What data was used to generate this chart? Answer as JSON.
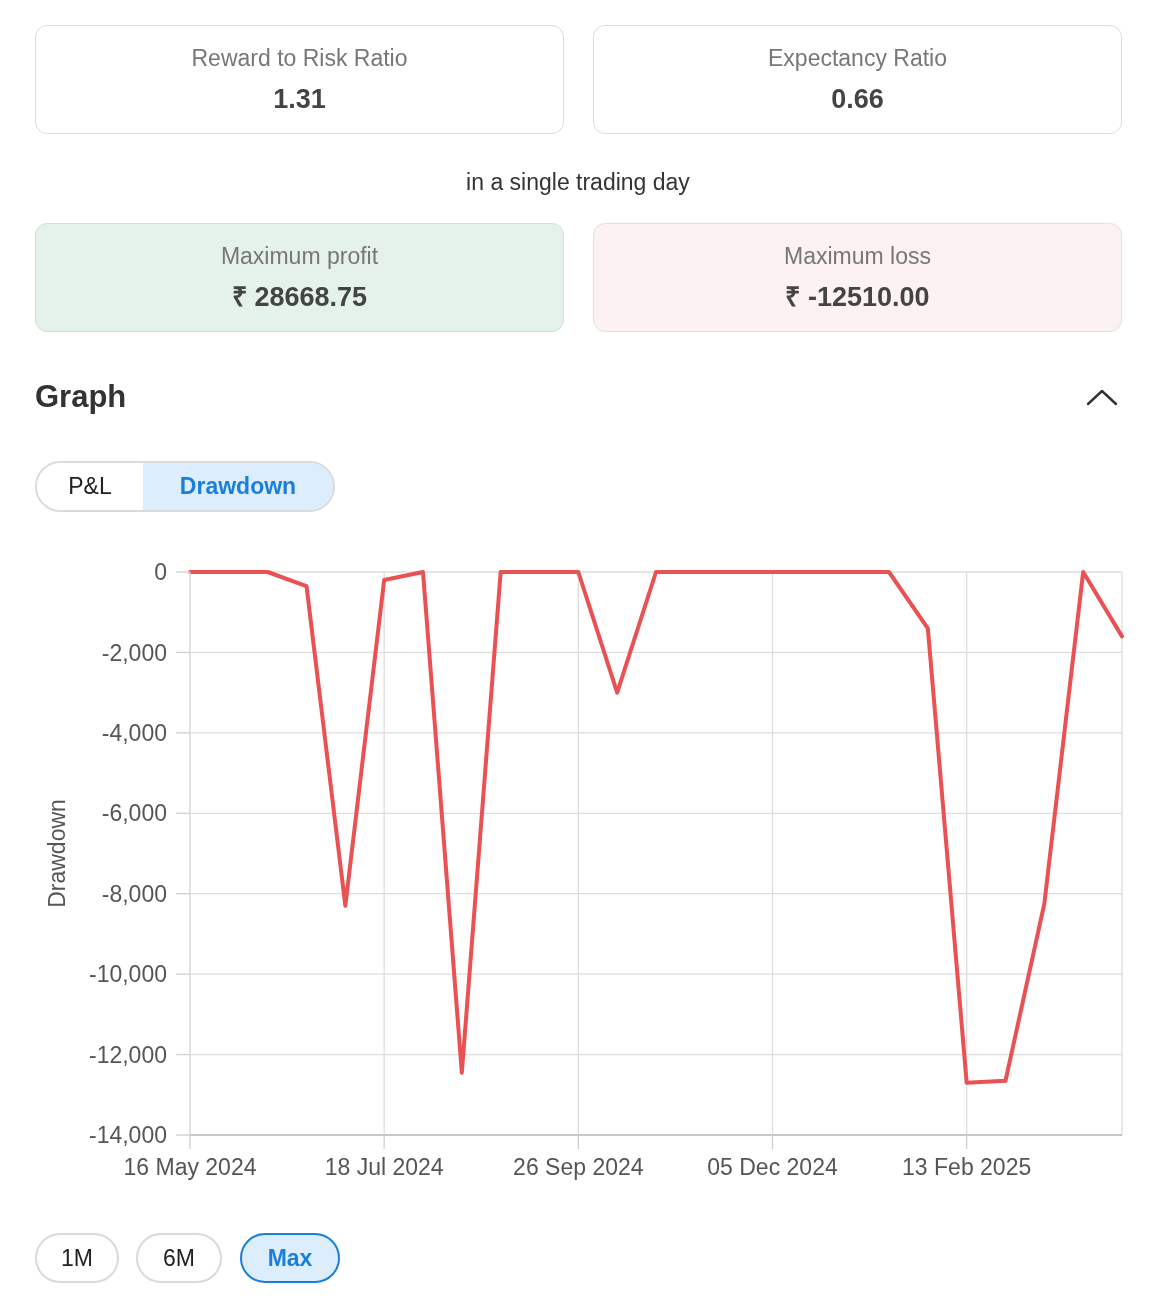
{
  "chart_data": [
    {
      "type": "other",
      "annotations": [
        "Reward to Risk Ratio",
        "1.31",
        "Expectancy Ratio",
        "0.66",
        "in a single trading day",
        "Maximum profit",
        "₹ 28668.75",
        "Maximum loss",
        "₹ -12510.00"
      ]
    },
    {
      "type": "line",
      "title": "Graph",
      "ylabel": "Drawdown",
      "annotations": [
        "P&L",
        "Drawdown",
        "1M",
        "6M",
        "Max"
      ],
      "categories": [
        "16 May 2024",
        null,
        null,
        null,
        null,
        "18 Jul 2024",
        null,
        null,
        null,
        null,
        "26 Sep 2024",
        null,
        null,
        null,
        null,
        "05 Dec 2024",
        null,
        null,
        null,
        null,
        "13 Feb 2025",
        null,
        null,
        null,
        null
      ],
      "values": [
        0,
        0,
        0,
        -350,
        -8300,
        -200,
        0,
        -12450,
        0,
        0,
        0,
        -3000,
        0,
        0,
        0,
        0,
        0,
        0,
        0,
        -1400,
        -12700,
        -12650,
        -8250,
        0,
        -1600
      ],
      "color": "#ea5153",
      "ylim": [
        -14000,
        0
      ],
      "yticks": [
        0,
        {
          "value": -2000,
          "label": "-2,000"
        },
        {
          "value": -4000,
          "label": "-4,000"
        },
        {
          "value": -6000,
          "label": "-6,000"
        },
        {
          "value": -8000,
          "label": "-8,000"
        },
        {
          "value": -10000,
          "label": "-10,000"
        },
        {
          "value": -12000,
          "label": "-12,000"
        },
        {
          "value": -14000,
          "label": "-14,000"
        }
      ],
      "grid": true
    }
  ]
}
